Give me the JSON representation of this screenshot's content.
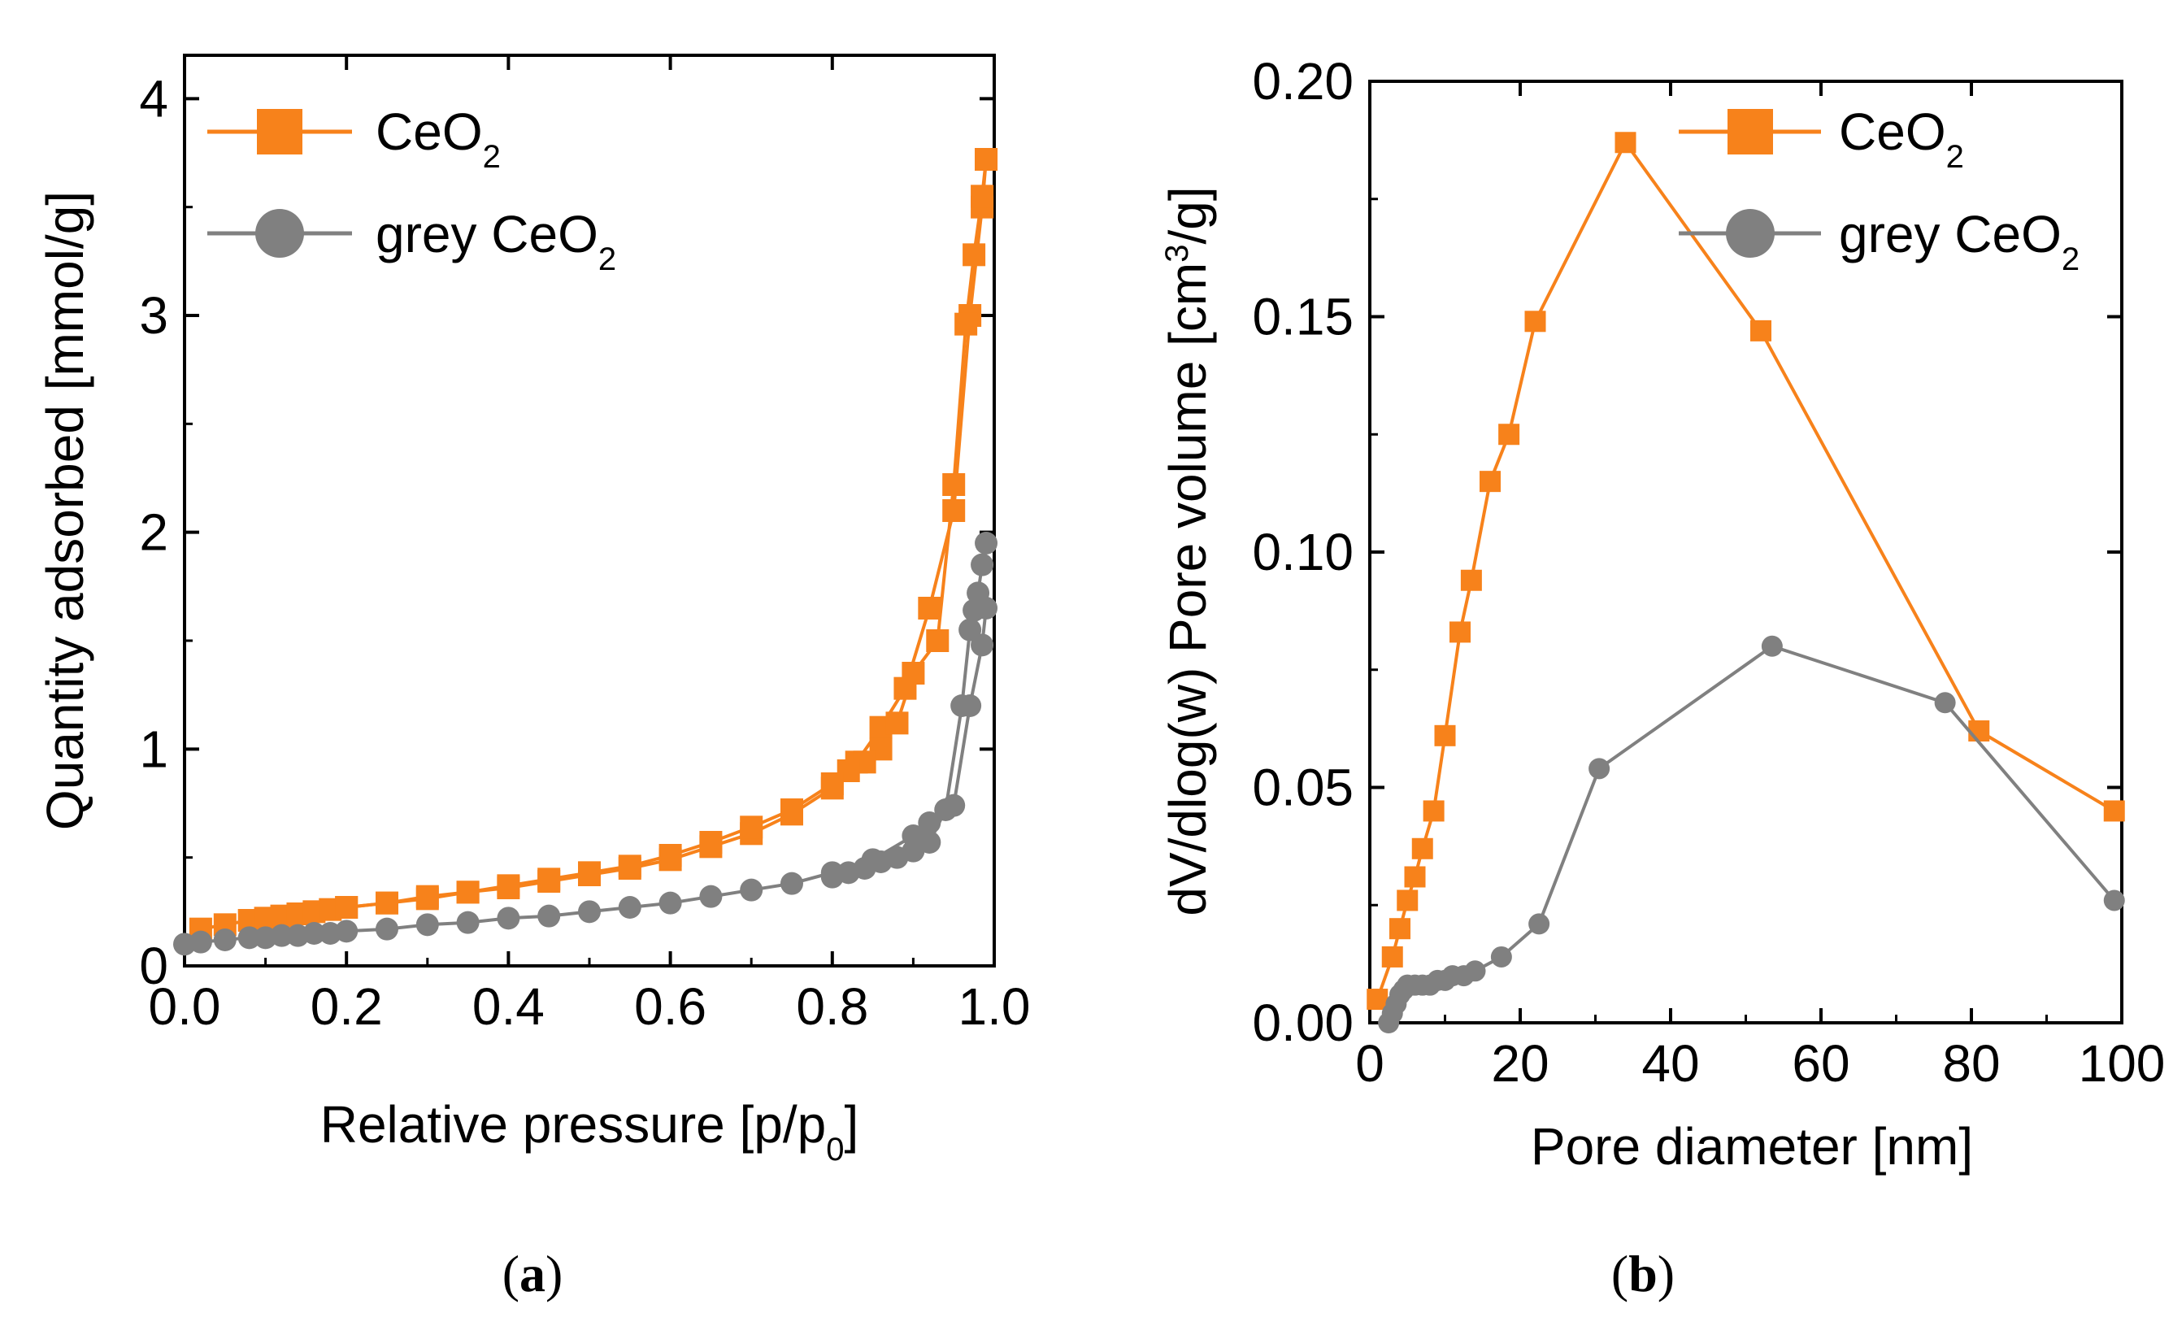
{
  "chart_data": [
    {
      "type": "scatter",
      "panel": "a",
      "caption_open": "(",
      "caption_letter": "a",
      "caption_close": ")",
      "xlabel_main": "Relative pressure [p/p",
      "xlabel_sub": "0",
      "xlabel_end": "]",
      "ylabel": "Quantity adsorbed [mmol/g]",
      "xlim": [
        0.0,
        1.0
      ],
      "ylim": [
        0,
        4.2
      ],
      "xticks": [
        "0.0",
        "0.2",
        "0.4",
        "0.6",
        "0.8",
        "1.0"
      ],
      "yticks": [
        "0",
        "1",
        "2",
        "3",
        "4"
      ],
      "legend_position": "top-left",
      "series": [
        {
          "name": "CeO",
          "name_sub": "2",
          "color": "#f7821b",
          "marker": "square",
          "adsorption": {
            "x": [
              0.02,
              0.05,
              0.08,
              0.1,
              0.12,
              0.14,
              0.16,
              0.18,
              0.2,
              0.25,
              0.3,
              0.35,
              0.4,
              0.45,
              0.5,
              0.55,
              0.6,
              0.65,
              0.7,
              0.75,
              0.8,
              0.83,
              0.86,
              0.89,
              0.92,
              0.95,
              0.97,
              0.985,
              0.99
            ],
            "y": [
              0.17,
              0.19,
              0.21,
              0.22,
              0.23,
              0.24,
              0.25,
              0.26,
              0.27,
              0.29,
              0.31,
              0.34,
              0.36,
              0.39,
              0.42,
              0.45,
              0.49,
              0.55,
              0.61,
              0.7,
              0.82,
              0.94,
              1.1,
              1.28,
              1.65,
              2.1,
              3.0,
              3.5,
              3.72
            ]
          },
          "desorption": {
            "x": [
              0.99,
              0.985,
              0.975,
              0.965,
              0.95,
              0.93,
              0.9,
              0.88,
              0.86,
              0.84,
              0.82,
              0.8,
              0.75,
              0.7,
              0.65,
              0.6,
              0.55,
              0.5,
              0.45,
              0.4,
              0.35,
              0.3,
              0.25,
              0.2
            ],
            "y": [
              3.72,
              3.55,
              3.28,
              2.96,
              2.22,
              1.5,
              1.35,
              1.12,
              1.0,
              0.94,
              0.9,
              0.84,
              0.72,
              0.64,
              0.57,
              0.51,
              0.46,
              0.43,
              0.4,
              0.37,
              0.34,
              0.32,
              0.29,
              0.27
            ]
          }
        },
        {
          "name": "grey CeO",
          "name_sub": "2",
          "color": "#808080",
          "marker": "circle",
          "adsorption": {
            "x": [
              0.0,
              0.02,
              0.05,
              0.08,
              0.1,
              0.12,
              0.14,
              0.16,
              0.18,
              0.2,
              0.25,
              0.3,
              0.35,
              0.4,
              0.45,
              0.5,
              0.55,
              0.6,
              0.65,
              0.7,
              0.75,
              0.8,
              0.85,
              0.9,
              0.92,
              0.95,
              0.97,
              0.985,
              0.99
            ],
            "y": [
              0.1,
              0.11,
              0.12,
              0.13,
              0.13,
              0.14,
              0.14,
              0.15,
              0.15,
              0.16,
              0.17,
              0.19,
              0.2,
              0.22,
              0.23,
              0.25,
              0.27,
              0.29,
              0.32,
              0.35,
              0.38,
              0.43,
              0.49,
              0.6,
              0.66,
              0.74,
              1.2,
              1.48,
              1.65
            ]
          },
          "desorption": {
            "x": [
              0.99,
              0.985,
              0.98,
              0.975,
              0.97,
              0.96,
              0.94,
              0.92,
              0.9,
              0.88,
              0.86,
              0.84,
              0.82,
              0.8
            ],
            "y": [
              1.95,
              1.85,
              1.72,
              1.64,
              1.55,
              1.2,
              0.72,
              0.57,
              0.53,
              0.5,
              0.48,
              0.45,
              0.43,
              0.41
            ]
          }
        }
      ]
    },
    {
      "type": "line",
      "panel": "b",
      "caption_open": "(",
      "caption_letter": "b",
      "caption_close": ")",
      "xlabel": "Pore diameter [nm]",
      "ylabel_main": "dV/dlog(w) Pore volume [cm",
      "ylabel_sup": "3",
      "ylabel_end": "/g]",
      "xlim": [
        0,
        100
      ],
      "ylim": [
        0.0,
        0.2
      ],
      "xticks": [
        "0",
        "20",
        "40",
        "60",
        "80",
        "100"
      ],
      "yticks": [
        "0.00",
        "0.05",
        "0.10",
        "0.15",
        "0.20"
      ],
      "legend_position": "top-right",
      "series": [
        {
          "name": "CeO",
          "name_sub": "2",
          "color": "#f7821b",
          "marker": "square",
          "x": [
            1.0,
            3.0,
            4.0,
            5.0,
            6.0,
            7.0,
            8.5,
            10.0,
            12.0,
            13.5,
            16.0,
            18.5,
            22.0,
            34.0,
            52.0,
            81.0,
            99.0
          ],
          "y": [
            0.005,
            0.014,
            0.02,
            0.026,
            0.031,
            0.037,
            0.045,
            0.061,
            0.083,
            0.094,
            0.115,
            0.125,
            0.149,
            0.187,
            0.147,
            0.062,
            0.045
          ]
        },
        {
          "name": "grey CeO",
          "name_sub": "2",
          "color": "#808080",
          "marker": "circle",
          "x": [
            2.5,
            3.0,
            3.5,
            4.0,
            4.5,
            5.0,
            6.0,
            7.0,
            8.0,
            9.0,
            10.0,
            11.0,
            12.5,
            14.0,
            17.5,
            22.5,
            30.5,
            53.5,
            76.5,
            99.0
          ],
          "y": [
            0.0,
            0.002,
            0.004,
            0.006,
            0.007,
            0.008,
            0.008,
            0.008,
            0.008,
            0.009,
            0.009,
            0.01,
            0.01,
            0.011,
            0.014,
            0.021,
            0.054,
            0.08,
            0.068,
            0.026
          ]
        }
      ]
    }
  ]
}
